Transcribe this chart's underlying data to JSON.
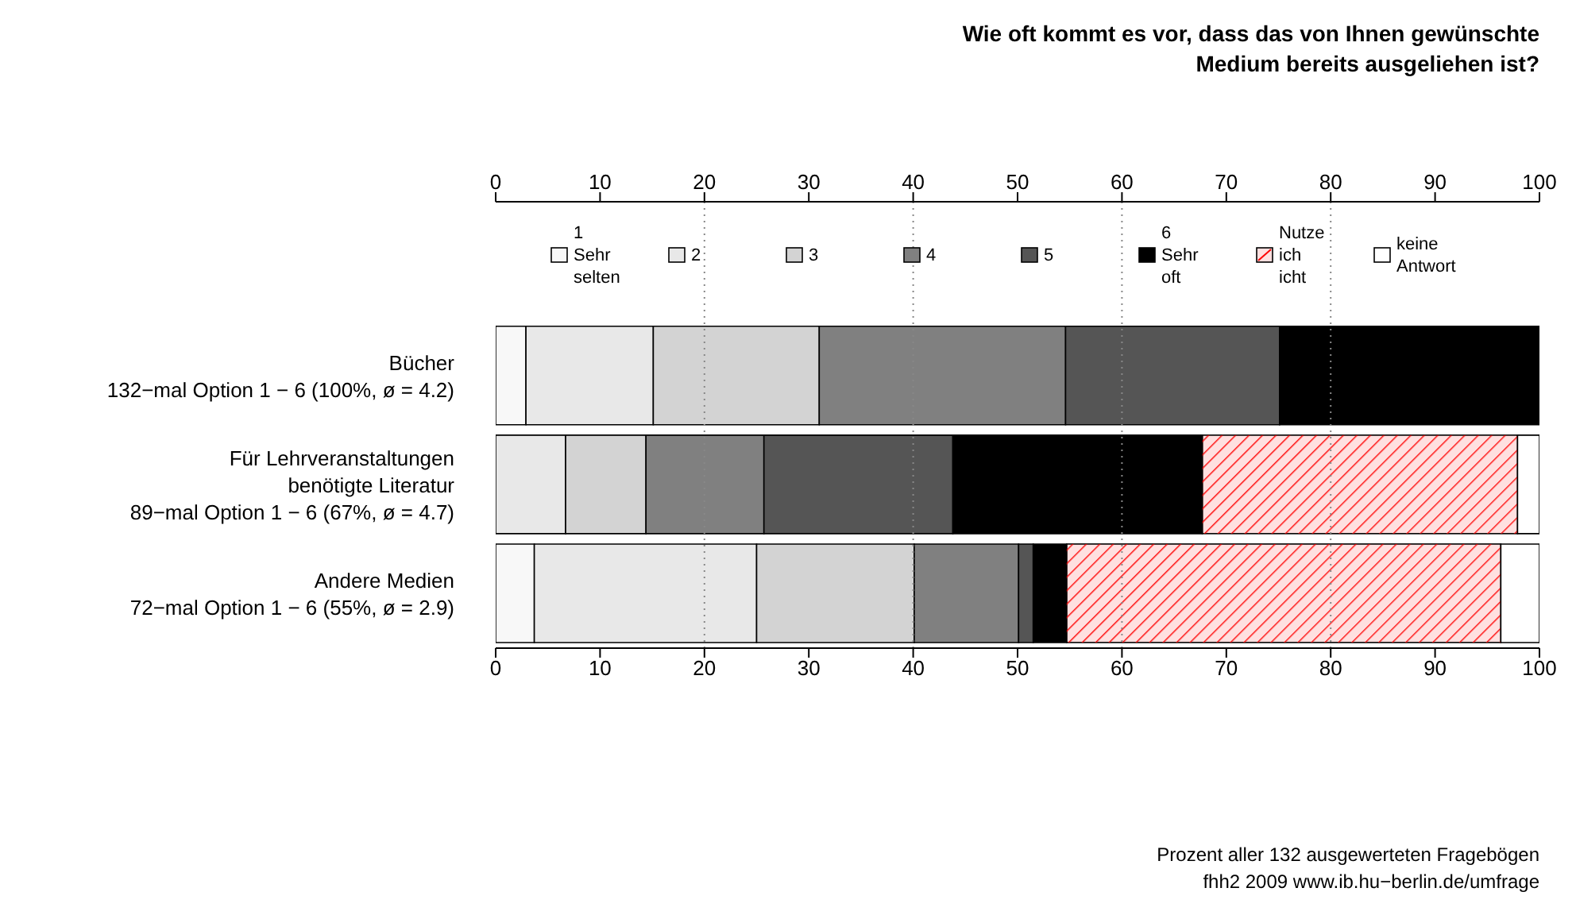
{
  "chart_data": {
    "type": "bar",
    "orientation": "horizontal",
    "stacked": true,
    "title": "Wie oft kommt es vor, dass das von Ihnen gewünschte\nMedium bereits ausgeliehen ist?",
    "categories": [
      "Bücher\n132−mal Option 1 − 6 (100%, ø = 4.2)",
      "Für Lehrveranstaltungen\nbenötigte Literatur\n89−mal Option 1 − 6 (67%, ø = 4.7)",
      "Andere Medien\n72−mal Option 1 − 6 (55%, ø = 2.9)"
    ],
    "series": [
      {
        "name": "1 Sehr selten",
        "color": "#f8f8f8",
        "values": [
          2.9,
          0,
          3.7
        ]
      },
      {
        "name": "2",
        "color": "#e8e8e8",
        "values": [
          12.2,
          6.7,
          21.3
        ]
      },
      {
        "name": "3",
        "color": "#d3d3d3",
        "values": [
          15.9,
          7.7,
          15.1
        ]
      },
      {
        "name": "4",
        "color": "#808080",
        "values": [
          23.6,
          11.3,
          10.0
        ]
      },
      {
        "name": "5",
        "color": "#555555",
        "values": [
          20.5,
          18.1,
          1.4
        ]
      },
      {
        "name": "6 Sehr oft",
        "color": "#000000",
        "values": [
          24.9,
          23.9,
          3.2
        ]
      },
      {
        "name": "Nutze ich icht",
        "color": "#ff0000",
        "values": [
          0,
          30.2,
          41.6
        ]
      },
      {
        "name": "keine Antwort",
        "color": "#ffffff",
        "values": [
          0,
          2.1,
          3.7
        ]
      }
    ],
    "xlim": [
      0,
      100
    ],
    "xticks": [
      0,
      10,
      20,
      30,
      40,
      50,
      60,
      70,
      80,
      90,
      100
    ],
    "x2lim": [
      0,
      100
    ],
    "x2ticks": [
      0,
      10,
      20,
      30,
      40,
      50,
      60,
      70,
      80,
      90,
      100
    ],
    "ref_lines": [
      {
        "axis": "x",
        "value": 20,
        "line_style": "dotted",
        "color": "#888888"
      },
      {
        "axis": "x",
        "value": 40,
        "line_style": "dotted",
        "color": "#888888"
      },
      {
        "axis": "x",
        "value": 60,
        "line_style": "dotted",
        "color": "#888888"
      },
      {
        "axis": "x",
        "value": 80,
        "line_style": "dotted",
        "color": "#888888"
      }
    ],
    "legend": "top",
    "annotations": [
      "Prozent aller 132 ausgewerteten Fragebögen",
      "fhh2 2009 www.ib.hu−berlin.de/umfrage"
    ]
  }
}
